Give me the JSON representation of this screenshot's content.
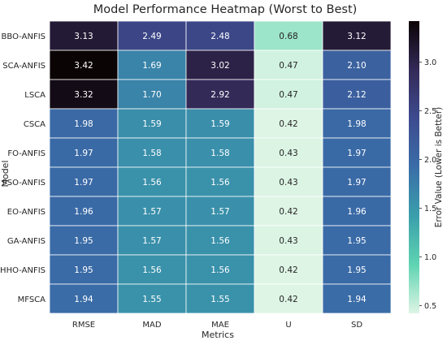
{
  "chart_data": {
    "type": "heatmap",
    "title": "Model Performance Heatmap (Worst to Best)",
    "xlabel": "Metrics",
    "ylabel": "Model",
    "colorbar_label": "Error Value (Lower is Better)",
    "columns": [
      "RMSE",
      "MAD",
      "MAE",
      "U",
      "SD"
    ],
    "rows": [
      "BBO-ANFIS",
      "SCA-ANFIS",
      "LSCA",
      "CSCA",
      "FO-ANFIS",
      "PSO-ANFIS",
      "EO-ANFIS",
      "GA-ANFIS",
      "HHO-ANFIS",
      "MFSCA"
    ],
    "values": [
      [
        3.13,
        2.49,
        2.48,
        0.68,
        3.12
      ],
      [
        3.42,
        1.69,
        3.02,
        0.47,
        2.1
      ],
      [
        3.32,
        1.7,
        2.92,
        0.47,
        2.12
      ],
      [
        1.98,
        1.59,
        1.59,
        0.42,
        1.98
      ],
      [
        1.97,
        1.58,
        1.58,
        0.43,
        1.97
      ],
      [
        1.97,
        1.56,
        1.56,
        0.43,
        1.97
      ],
      [
        1.96,
        1.57,
        1.57,
        0.42,
        1.96
      ],
      [
        1.95,
        1.57,
        1.56,
        0.43,
        1.95
      ],
      [
        1.95,
        1.56,
        1.56,
        0.42,
        1.95
      ],
      [
        1.94,
        1.55,
        1.55,
        0.42,
        1.94
      ]
    ],
    "colorbar_range": [
      0.42,
      3.42
    ],
    "colorbar_ticks": [
      "0.5",
      "1.0",
      "1.5",
      "2.0",
      "2.5",
      "3.0"
    ],
    "colormap": "mako_r",
    "colormap_stops": [
      "#def5e5",
      "#5fd4b2",
      "#3a9fab",
      "#3a6da8",
      "#3d4b8f",
      "#342a58",
      "#0b0405"
    ],
    "grid": true,
    "annotations": true
  }
}
